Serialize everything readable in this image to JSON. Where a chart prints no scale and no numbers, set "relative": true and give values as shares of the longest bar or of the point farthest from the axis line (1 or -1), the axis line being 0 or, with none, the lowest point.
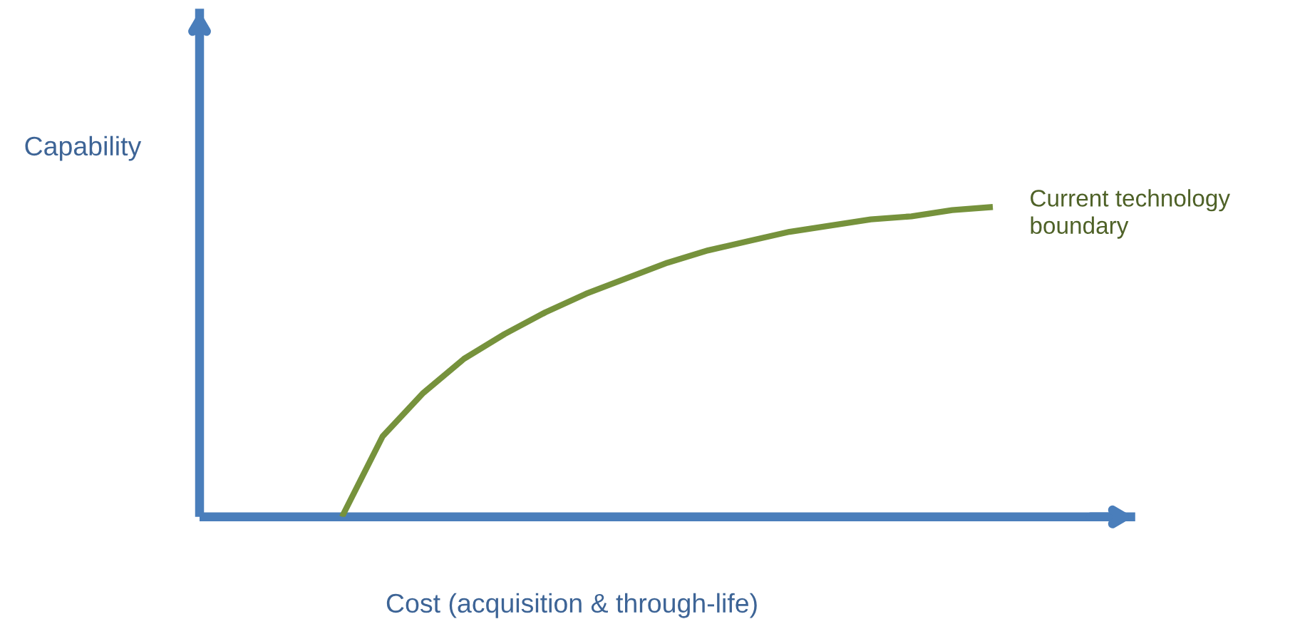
{
  "chart_data": {
    "type": "line",
    "relative": true,
    "xlabel": "Cost (acquisition & through-life)",
    "ylabel": "Capability",
    "categories": [
      null,
      null,
      null,
      null,
      null,
      null,
      null,
      null,
      null,
      null,
      null,
      null,
      null,
      null,
      null,
      null,
      null,
      null,
      null,
      null,
      null,
      null,
      null
    ],
    "series": [
      {
        "name": "Current technology boundary",
        "color": "#76923c",
        "values": [
          null,
          null,
          null,
          0,
          0.26,
          0.4,
          0.51,
          0.59,
          0.66,
          0.72,
          0.77,
          0.82,
          0.86,
          0.89,
          0.92,
          0.94,
          0.96,
          0.97,
          0.99,
          1,
          null,
          null,
          null
        ]
      }
    ]
  }
}
